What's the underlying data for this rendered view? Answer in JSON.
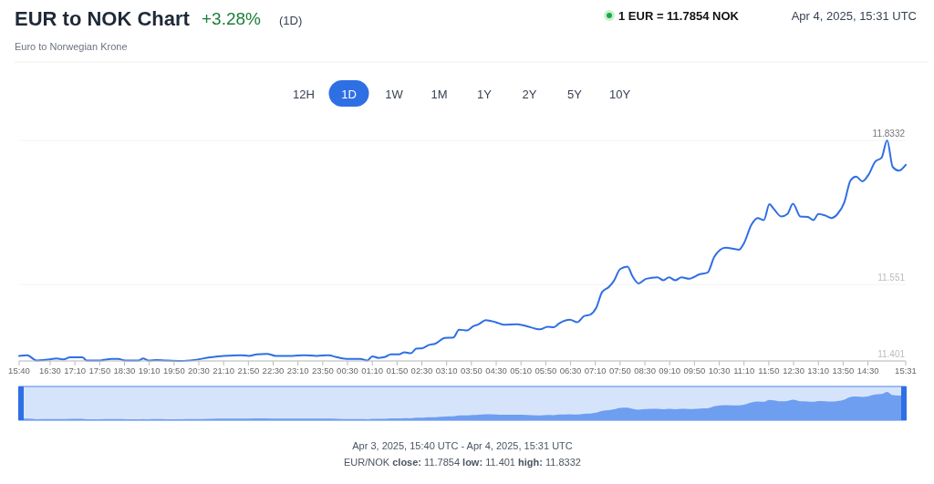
{
  "chart_data": {
    "type": "line",
    "title": "EUR to NOK Chart",
    "subtitle": "Euro to Norwegian Krone",
    "annotations": [
      "+3.28%",
      "(1D)",
      "1 EUR = 11.7854 NOK",
      "Apr 4, 2025, 15:31 UTC",
      "12H",
      "1D",
      "1W",
      "1M",
      "1Y",
      "2Y",
      "5Y",
      "10Y",
      "Apr 3, 2025, 15:40 UTC - Apr 4, 2025, 15:31 UTC",
      "EUR/NOK",
      "close:",
      "11.7854",
      "low:",
      "11.401",
      "high:",
      "11.8332"
    ],
    "x": [
      "2025-04-03T15:40",
      "2025-04-03T15:53",
      "2025-04-03T16:08",
      "2025-04-03T16:30",
      "2025-04-03T16:40",
      "2025-04-03T16:52",
      "2025-04-03T17:02",
      "2025-04-03T17:22",
      "2025-04-03T17:29",
      "2025-04-03T17:51",
      "2025-04-03T18:09",
      "2025-04-03T18:20",
      "2025-04-03T18:31",
      "2025-04-03T18:53",
      "2025-04-03T19:00",
      "2025-04-03T19:09",
      "2025-04-03T19:22",
      "2025-04-03T19:37",
      "2025-04-03T20:01",
      "2025-04-03T20:23",
      "2025-04-03T20:48",
      "2025-04-03T21:10",
      "2025-04-03T21:37",
      "2025-04-03T21:51",
      "2025-04-03T22:04",
      "2025-04-03T22:20",
      "2025-04-03T22:34",
      "2025-04-03T23:01",
      "2025-04-03T23:20",
      "2025-04-03T23:40",
      "2025-04-03T23:59",
      "2025-04-04T00:14",
      "2025-04-04T00:29",
      "2025-04-04T00:51",
      "2025-04-04T01:02",
      "2025-04-04T01:10",
      "2025-04-04T01:20",
      "2025-04-04T01:31",
      "2025-04-04T01:40",
      "2025-04-04T01:53",
      "2025-04-04T02:02",
      "2025-04-04T02:12",
      "2025-04-04T02:21",
      "2025-04-04T02:31",
      "2025-04-04T02:41",
      "2025-04-04T02:52",
      "2025-04-04T03:07",
      "2025-04-04T03:21",
      "2025-04-04T03:30",
      "2025-04-04T03:43",
      "2025-04-04T03:53",
      "2025-04-04T04:02",
      "2025-04-04T04:13",
      "2025-04-04T04:29",
      "2025-04-04T04:42",
      "2025-04-04T05:04",
      "2025-04-04T05:20",
      "2025-04-04T05:34",
      "2025-04-04T05:41",
      "2025-04-04T05:53",
      "2025-04-04T06:03",
      "2025-04-04T06:12",
      "2025-04-04T06:29",
      "2025-04-04T06:41",
      "2025-04-04T06:52",
      "2025-04-04T07:02",
      "2025-04-04T07:11",
      "2025-04-04T07:21",
      "2025-04-04T07:32",
      "2025-04-04T07:40",
      "2025-04-04T07:50",
      "2025-04-04T08:02",
      "2025-04-04T08:10",
      "2025-04-04T08:20",
      "2025-04-04T08:32",
      "2025-04-04T08:50",
      "2025-04-04T09:00",
      "2025-04-04T09:09",
      "2025-04-04T09:19",
      "2025-04-04T09:29",
      "2025-04-04T09:41",
      "2025-04-04T09:59",
      "2025-04-04T10:11",
      "2025-04-04T10:22",
      "2025-04-04T10:40",
      "2025-04-04T11:02",
      "2025-04-04T11:10",
      "2025-04-04T11:22",
      "2025-04-04T11:32",
      "2025-04-04T11:42",
      "2025-04-04T11:51",
      "2025-04-04T11:58",
      "2025-04-04T12:10",
      "2025-04-04T12:20",
      "2025-04-04T12:29",
      "2025-04-04T12:41",
      "2025-04-04T12:53",
      "2025-04-04T13:02",
      "2025-04-04T13:10",
      "2025-04-04T13:21",
      "2025-04-04T13:31",
      "2025-04-04T13:41",
      "2025-04-04T13:52",
      "2025-04-04T14:02",
      "2025-04-04T14:11",
      "2025-04-04T14:21",
      "2025-04-04T14:31",
      "2025-04-04T14:42",
      "2025-04-04T14:52",
      "2025-04-04T15:01",
      "2025-04-04T15:10",
      "2025-04-04T15:20",
      "2025-04-04T15:31"
    ],
    "series": [
      {
        "color": "#2f6fe4",
        "values": [
          11.411,
          11.412,
          11.402,
          11.404,
          11.406,
          11.404,
          11.408,
          11.408,
          11.402,
          11.402,
          11.405,
          11.405,
          11.402,
          11.402,
          11.406,
          11.402,
          11.403,
          11.402,
          11.401,
          11.403,
          11.408,
          11.411,
          11.412,
          11.411,
          11.414,
          11.415,
          11.411,
          11.411,
          11.412,
          11.411,
          11.412,
          11.408,
          11.405,
          11.405,
          11.402,
          11.41,
          11.407,
          11.409,
          11.414,
          11.414,
          11.418,
          11.416,
          11.425,
          11.426,
          11.432,
          11.435,
          11.446,
          11.447,
          11.462,
          11.461,
          11.469,
          11.473,
          11.481,
          11.477,
          11.472,
          11.473,
          11.469,
          11.464,
          11.463,
          11.468,
          11.467,
          11.475,
          11.482,
          11.477,
          11.489,
          11.492,
          11.504,
          11.536,
          11.546,
          11.558,
          11.581,
          11.586,
          11.567,
          11.553,
          11.562,
          11.565,
          11.559,
          11.565,
          11.559,
          11.565,
          11.562,
          11.571,
          11.574,
          11.605,
          11.623,
          11.619,
          11.632,
          11.668,
          11.681,
          11.677,
          11.708,
          11.699,
          11.684,
          11.689,
          11.709,
          11.684,
          11.683,
          11.677,
          11.689,
          11.686,
          11.681,
          11.689,
          11.712,
          11.755,
          11.762,
          11.753,
          11.766,
          11.792,
          11.799,
          11.8332,
          11.781,
          11.774,
          11.7854
        ]
      }
    ],
    "xlim": [
      "2025-04-03T15:40",
      "2025-04-04T15:31"
    ],
    "xticks": [
      {
        "value": "2025-04-03T15:40",
        "label": "15:40"
      },
      {
        "value": "2025-04-03T16:30",
        "label": "16:30"
      },
      {
        "value": "2025-04-03T17:10",
        "label": "17:10"
      },
      {
        "value": "2025-04-03T17:50",
        "label": "17:50"
      },
      {
        "value": "2025-04-03T18:30",
        "label": "18:30"
      },
      {
        "value": "2025-04-03T19:10",
        "label": "19:10"
      },
      {
        "value": "2025-04-03T19:50",
        "label": "19:50"
      },
      {
        "value": "2025-04-03T20:30",
        "label": "20:30"
      },
      {
        "value": "2025-04-03T21:10",
        "label": "21:10"
      },
      {
        "value": "2025-04-03T21:50",
        "label": "21:50"
      },
      {
        "value": "2025-04-03T22:30",
        "label": "22:30"
      },
      {
        "value": "2025-04-03T23:10",
        "label": "23:10"
      },
      {
        "value": "2025-04-03T23:50",
        "label": "23:50"
      },
      {
        "value": "2025-04-04T00:30",
        "label": "00:30"
      },
      {
        "value": "2025-04-04T01:10",
        "label": "01:10"
      },
      {
        "value": "2025-04-04T01:50",
        "label": "01:50"
      },
      {
        "value": "2025-04-04T02:30",
        "label": "02:30"
      },
      {
        "value": "2025-04-04T03:10",
        "label": "03:10"
      },
      {
        "value": "2025-04-04T03:50",
        "label": "03:50"
      },
      {
        "value": "2025-04-04T04:30",
        "label": "04:30"
      },
      {
        "value": "2025-04-04T05:10",
        "label": "05:10"
      },
      {
        "value": "2025-04-04T05:50",
        "label": "05:50"
      },
      {
        "value": "2025-04-04T06:30",
        "label": "06:30"
      },
      {
        "value": "2025-04-04T07:10",
        "label": "07:10"
      },
      {
        "value": "2025-04-04T07:50",
        "label": "07:50"
      },
      {
        "value": "2025-04-04T08:30",
        "label": "08:30"
      },
      {
        "value": "2025-04-04T09:10",
        "label": "09:10"
      },
      {
        "value": "2025-04-04T09:50",
        "label": "09:50"
      },
      {
        "value": "2025-04-04T10:30",
        "label": "10:30"
      },
      {
        "value": "2025-04-04T11:10",
        "label": "11:10"
      },
      {
        "value": "2025-04-04T11:50",
        "label": "11:50"
      },
      {
        "value": "2025-04-04T12:30",
        "label": "12:30"
      },
      {
        "value": "2025-04-04T13:10",
        "label": "13:10"
      },
      {
        "value": "2025-04-04T13:50",
        "label": "13:50"
      },
      {
        "value": "2025-04-04T14:30",
        "label": "14:30"
      },
      {
        "value": "2025-04-04T15:31",
        "label": "15:31"
      }
    ],
    "ylim": [
      11.401,
      11.8332
    ],
    "yticks": [
      11.401,
      11.551,
      11.8332
    ],
    "grid": "y"
  }
}
